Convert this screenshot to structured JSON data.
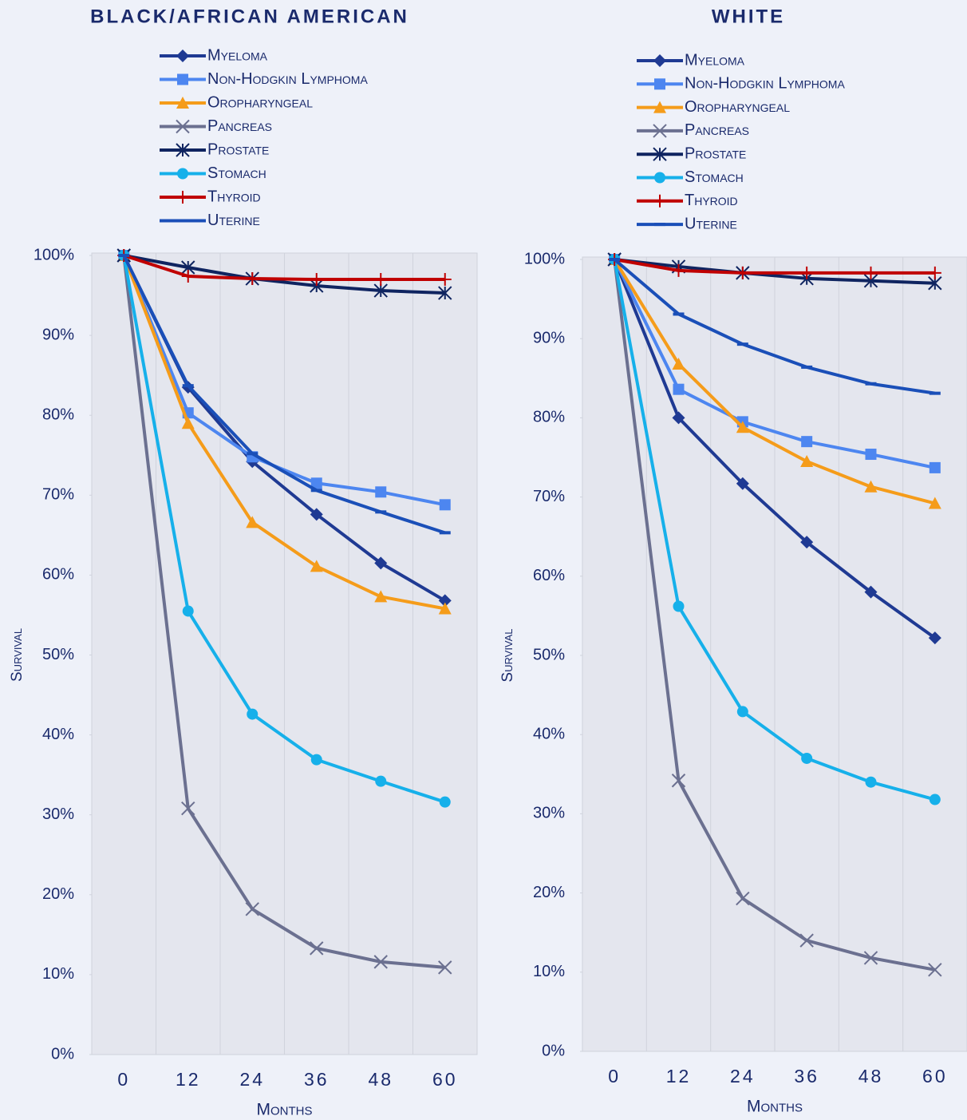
{
  "chart_data": [
    {
      "type": "line",
      "title": "BLACK/AFRICAN AMERICAN",
      "x_label": "Months",
      "y_label": "Survival",
      "categories": [
        "0",
        "12",
        "24",
        "36",
        "48",
        "60"
      ],
      "ylim": [
        0,
        100
      ],
      "yticks": [
        {
          "value": 0,
          "label": "0%"
        },
        {
          "value": 10,
          "label": "10%"
        },
        {
          "value": 20,
          "label": "20%"
        },
        {
          "value": 30,
          "label": "30%"
        },
        {
          "value": 40,
          "label": "40%"
        },
        {
          "value": 50,
          "label": "50%"
        },
        {
          "value": 60,
          "label": "60%"
        },
        {
          "value": 70,
          "label": "70%"
        },
        {
          "value": 80,
          "label": "80%"
        },
        {
          "value": 90,
          "label": "90%"
        },
        {
          "value": 100,
          "label": "100%"
        }
      ],
      "series": [
        {
          "name": "Myeloma",
          "color": "#1f3a93",
          "marker": "diamond",
          "values": [
            100,
            83.5,
            74.2,
            67.6,
            61.5,
            56.8
          ]
        },
        {
          "name": "Non-Hodgkin Lymphoma",
          "color": "#4d86f0",
          "marker": "square",
          "values": [
            100,
            80.3,
            74.8,
            71.5,
            70.4,
            68.8
          ]
        },
        {
          "name": "Oropharyngeal",
          "color": "#f59c1a",
          "marker": "triangle",
          "values": [
            100,
            79,
            66.6,
            61.1,
            57.3,
            55.8
          ]
        },
        {
          "name": "Pancreas",
          "color": "#6b7090",
          "marker": "x",
          "values": [
            100,
            30.8,
            18.2,
            13.3,
            11.6,
            10.9
          ]
        },
        {
          "name": "Prostate",
          "color": "#0f2460",
          "marker": "asterisk",
          "values": [
            100,
            98.5,
            97.1,
            96.2,
            95.6,
            95.3
          ]
        },
        {
          "name": "Stomach",
          "color": "#16b0ea",
          "marker": "circle",
          "values": [
            100,
            55.5,
            42.6,
            36.9,
            34.2,
            31.6
          ]
        },
        {
          "name": "Thyroid",
          "color": "#c00000",
          "marker": "plus",
          "values": [
            100,
            97.4,
            97.1,
            97,
            97,
            97
          ]
        },
        {
          "name": "Uterine",
          "color": "#1a4fb8",
          "marker": "dash",
          "values": [
            100,
            83.7,
            75.2,
            70.6,
            67.9,
            65.3
          ]
        }
      ]
    },
    {
      "type": "line",
      "title": "WHITE",
      "x_label": "Months",
      "y_label": "Survival",
      "categories": [
        "0",
        "12",
        "24",
        "36",
        "48",
        "60"
      ],
      "ylim": [
        0,
        100
      ],
      "yticks": [
        {
          "value": 0,
          "label": "0%"
        },
        {
          "value": 10,
          "label": "10%"
        },
        {
          "value": 20,
          "label": "20%"
        },
        {
          "value": 30,
          "label": "30%"
        },
        {
          "value": 40,
          "label": "40%"
        },
        {
          "value": 50,
          "label": "50%"
        },
        {
          "value": 60,
          "label": "60%"
        },
        {
          "value": 70,
          "label": "70%"
        },
        {
          "value": 80,
          "label": "80%"
        },
        {
          "value": 90,
          "label": "90%"
        },
        {
          "value": 100,
          "label": "100%"
        }
      ],
      "series": [
        {
          "name": "Myeloma",
          "color": "#1f3a93",
          "marker": "diamond",
          "values": [
            100,
            80,
            71.7,
            64.3,
            58,
            52.2
          ]
        },
        {
          "name": "Non-Hodgkin Lymphoma",
          "color": "#4d86f0",
          "marker": "square",
          "values": [
            100,
            83.6,
            79.5,
            77,
            75.4,
            73.7
          ]
        },
        {
          "name": "Oropharyngeal",
          "color": "#f59c1a",
          "marker": "triangle",
          "values": [
            100,
            86.8,
            78.8,
            74.5,
            71.3,
            69.2
          ]
        },
        {
          "name": "Pancreas",
          "color": "#6b7090",
          "marker": "x",
          "values": [
            100,
            34.2,
            19.3,
            14,
            11.8,
            10.3
          ]
        },
        {
          "name": "Prostate",
          "color": "#0f2460",
          "marker": "asterisk",
          "values": [
            100,
            99.1,
            98.3,
            97.6,
            97.3,
            97
          ]
        },
        {
          "name": "Stomach",
          "color": "#16b0ea",
          "marker": "circle",
          "values": [
            100,
            56.2,
            42.9,
            37,
            34,
            31.8
          ]
        },
        {
          "name": "Thyroid",
          "color": "#c00000",
          "marker": "plus",
          "values": [
            100,
            98.6,
            98.3,
            98.3,
            98.3,
            98.3
          ]
        },
        {
          "name": "Uterine",
          "color": "#1a4fb8",
          "marker": "dash",
          "values": [
            100,
            93.1,
            89.3,
            86.4,
            84.3,
            83.1
          ]
        }
      ]
    }
  ]
}
